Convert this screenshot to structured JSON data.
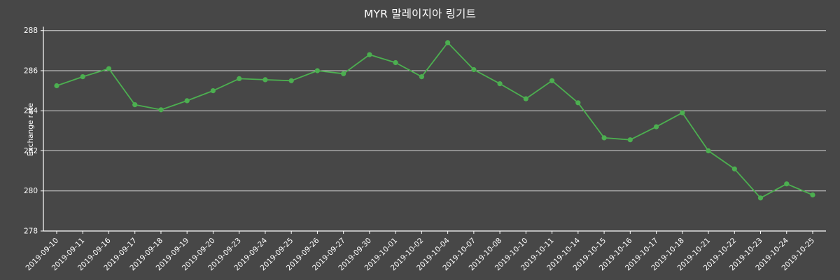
{
  "title": "MYR 말레이지아 링기트",
  "chart_data": {
    "type": "line",
    "title": "MYR 말레이지아 링기트",
    "xlabel": "",
    "ylabel": "Exchange rate",
    "x": [
      "2019-09-10",
      "2019-09-11",
      "2019-09-16",
      "2019-09-17",
      "2019-09-18",
      "2019-09-19",
      "2019-09-20",
      "2019-09-23",
      "2019-09-24",
      "2019-09-25",
      "2019-09-26",
      "2019-09-27",
      "2019-09-30",
      "2019-10-01",
      "2019-10-02",
      "2019-10-04",
      "2019-10-07",
      "2019-10-08",
      "2019-10-10",
      "2019-10-11",
      "2019-10-14",
      "2019-10-15",
      "2019-10-16",
      "2019-10-17",
      "2019-10-18",
      "2019-10-21",
      "2019-10-22",
      "2019-10-23",
      "2019-10-24",
      "2019-10-25"
    ],
    "values": [
      285.25,
      285.7,
      286.1,
      284.3,
      284.05,
      284.5,
      285.0,
      285.6,
      285.55,
      285.5,
      286.0,
      285.85,
      286.8,
      286.4,
      285.7,
      287.4,
      286.05,
      285.35,
      284.6,
      285.5,
      284.4,
      282.65,
      282.55,
      283.2,
      283.9,
      282.0,
      281.1,
      279.65,
      280.35,
      279.8
    ],
    "ylim": [
      278,
      288.2
    ],
    "yticks": [
      278,
      280,
      282,
      284,
      286,
      288
    ],
    "grid": true,
    "legend": "none",
    "colors": {
      "line": "#4caf50",
      "marker": "#4caf50",
      "background": "#474747",
      "grid": "#e6e6e6",
      "axis": "#ffffff",
      "text": "#ffffff"
    }
  }
}
